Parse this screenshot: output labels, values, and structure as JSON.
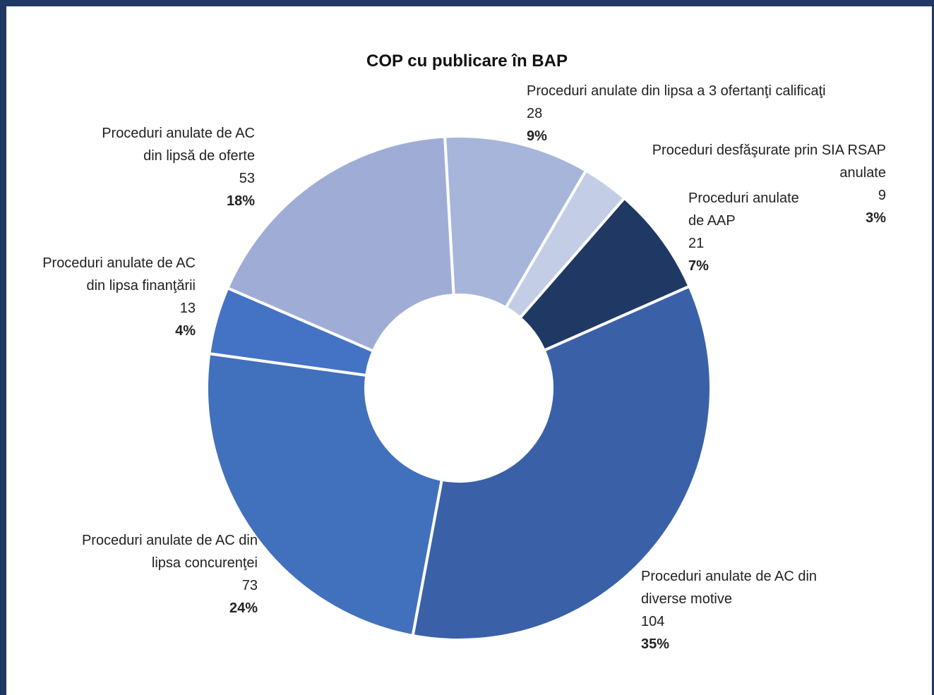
{
  "chart_data": {
    "type": "donut",
    "title": "COP cu publicare în BAP",
    "categories": [
      "Proceduri anulate din lipsa a 3 ofertanţi calificaţi",
      "Proceduri desfăşurate prin SIA RSAP anulate",
      "Proceduri anulate de AAP",
      "Proceduri anulate de AC din diverse  motive",
      "Proceduri anulate de AC din lipsa concurenţei",
      "Proceduri anulate de AC din lipsa finanţării",
      "Proceduri anulate de AC din lipsă de oferte"
    ],
    "values": [
      28,
      9,
      21,
      104,
      73,
      13,
      53
    ],
    "percent_labels": [
      "9%",
      "3%",
      "7%",
      "35%",
      "24%",
      "4%",
      "18%"
    ],
    "colors": [
      "#a6b5d9",
      "#c3cde6",
      "#203864",
      "#3a61a8",
      "#4170bd",
      "#4472c4",
      "#9fadd6"
    ]
  }
}
